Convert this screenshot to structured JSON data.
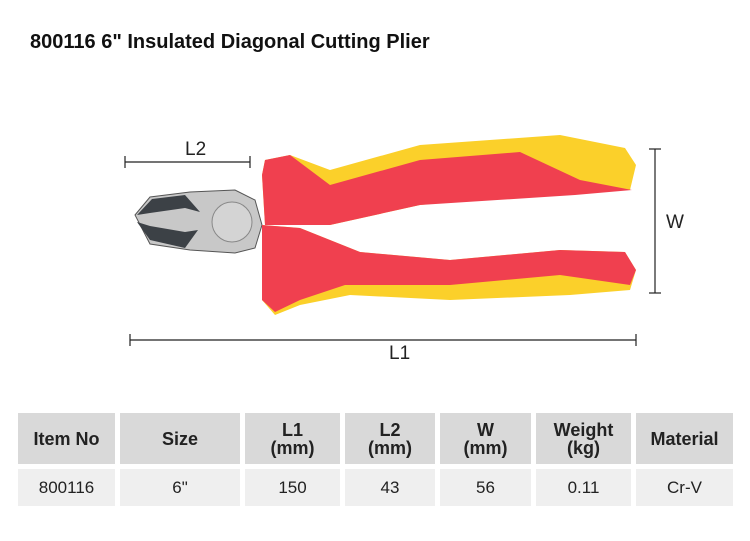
{
  "title": "800116  6\" Insulated Diagonal Cutting Plier",
  "dimensions": {
    "l1": "L1",
    "l2": "L2",
    "w": "W"
  },
  "table": {
    "headers": [
      [
        "Item No",
        ""
      ],
      [
        "Size",
        ""
      ],
      [
        "L1",
        "(mm)"
      ],
      [
        "L2",
        "(mm)"
      ],
      [
        "W",
        "(mm)"
      ],
      [
        "Weight",
        "(kg)"
      ],
      [
        "Material",
        ""
      ]
    ],
    "rows": [
      [
        "800116",
        "6\"",
        "150",
        "43",
        "56",
        "0.11",
        "Cr-V"
      ]
    ]
  },
  "colors": {
    "handle_red": "#f0404f",
    "handle_yellow": "#fbd02a",
    "header_bg": "#d9d9d9",
    "row_bg": "#efefef"
  }
}
